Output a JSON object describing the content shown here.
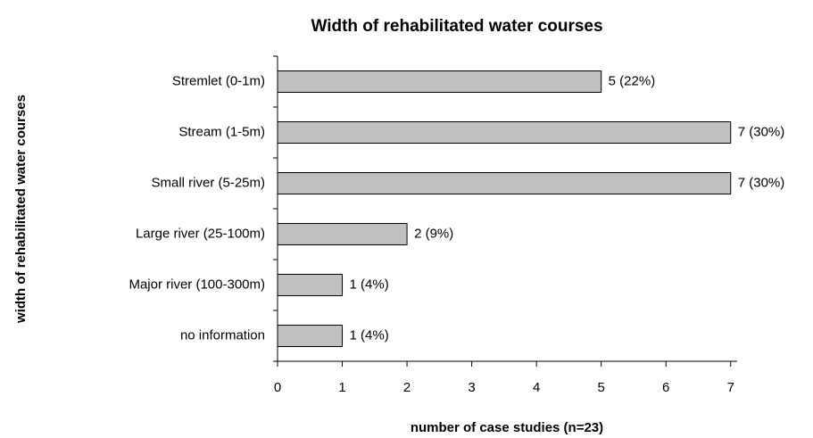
{
  "chart_data": {
    "type": "bar",
    "orientation": "horizontal",
    "title": "Width of rehabilitated water courses",
    "x_label": "number of case studies (n=23)",
    "y_label": "width of rehabilitated water courses",
    "categories": [
      "Stremlet (0-1m)",
      "Stream (1-5m)",
      "Small river (5-25m)",
      "Large river (25-100m)",
      "Major river (100-300m)",
      "no information"
    ],
    "values": [
      5,
      7,
      7,
      2,
      1,
      1
    ],
    "value_labels": [
      "5 (22%)",
      "7  (30%)",
      "7  (30%)",
      "2 (9%)",
      "1 (4%)",
      "1 (4%)"
    ],
    "color": "#c0c0c0",
    "xlim": [
      0,
      7.1
    ],
    "xticks": [
      0,
      1,
      2,
      3,
      4,
      5,
      6,
      7
    ],
    "grid": false
  }
}
